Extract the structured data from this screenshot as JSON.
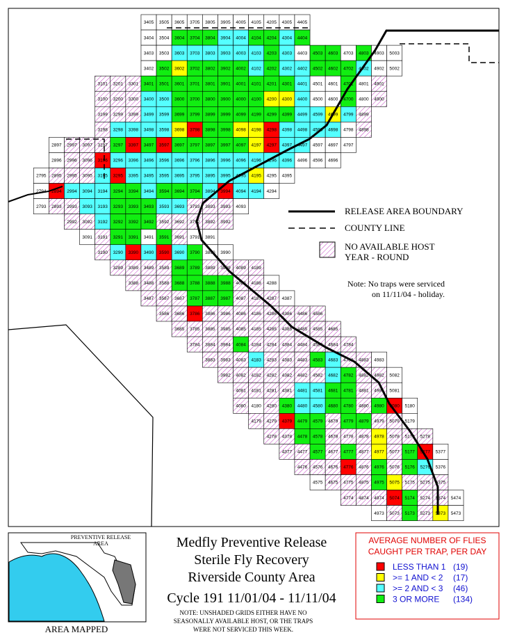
{
  "map": {
    "fill_colors": {
      "w": "#ffffff",
      "r": "#ff0000",
      "y": "#ffff00",
      "c": "#55ffff",
      "g": "#11ee11",
      "h": "hatch"
    },
    "rows": [
      {
        "cells": [
          "3405",
          "3505",
          "3605",
          "3705",
          "3805",
          "3905",
          "4005",
          "4105",
          "4205",
          "4305",
          "4405"
        ],
        "fill": "wwwwwwwwwww"
      },
      {
        "cells": [
          "3404",
          "3504",
          "3604",
          "3704",
          "3804",
          "3904",
          "4004",
          "4104",
          "4204",
          "4304",
          "4404"
        ],
        "fill": "wwgggccggcg"
      },
      {
        "cells": [
          "3403",
          "3503",
          "3603",
          "3703",
          "3803",
          "3903",
          "4003",
          "4103",
          "4203",
          "4303",
          "4403",
          "4503",
          "4603",
          "4703",
          "4803",
          "4903",
          "5003"
        ],
        "fill": "wwccccccgcwggwgww"
      },
      {
        "cells": [
          "3402",
          "3502",
          "3602",
          "3702",
          "3802",
          "3902",
          "4002",
          "4102",
          "4202",
          "4302",
          "4402",
          "4502",
          "4602",
          "4702",
          "4802",
          "4902",
          "5002"
        ],
        "fill": "wgyggggcgccgggcww"
      },
      {
        "cells": [
          "3101",
          "3201",
          "3301",
          "3401",
          "3501",
          "3601",
          "3701",
          "3801",
          "3901",
          "4001",
          "4101",
          "4201",
          "4301",
          "4401",
          "4501",
          "4601",
          "4701",
          "4801",
          "4901"
        ],
        "fill": "hhhggggggggggcwwgwh"
      },
      {
        "cells": [
          "3100",
          "3200",
          "3300",
          "3400",
          "3500",
          "3600",
          "3700",
          "3800",
          "3900",
          "4000",
          "4100",
          "4200",
          "4300",
          "4400",
          "4500",
          "4600",
          "4700",
          "4800",
          "4900"
        ],
        "fill": "hhhccggggggyycwwgwh"
      },
      {
        "cells": [
          "3199",
          "3299",
          "3399",
          "3499",
          "3599",
          "3699",
          "3799",
          "3899",
          "3999",
          "4099",
          "4199",
          "4299",
          "4399",
          "4499",
          "4599",
          "4699",
          "4799",
          "4899"
        ],
        "fill": "hhhccggggggggccych"
      },
      {
        "cells": [
          "3198",
          "3298",
          "3398",
          "3498",
          "3598",
          "3698",
          "3798",
          "3898",
          "3998",
          "4098",
          "4198",
          "4298",
          "4398",
          "4498",
          "4598",
          "4698",
          "4798",
          "4898"
        ],
        "fill": "hccccyrggyyrccccwh"
      },
      {
        "cells": [
          "2897",
          "2997",
          "3097",
          "3197",
          "3297",
          "3397",
          "3497",
          "3597",
          "3697",
          "3797",
          "3897",
          "3997",
          "4097",
          "4197",
          "4297",
          "4397",
          "4497",
          "4597",
          "4697",
          "4797"
        ],
        "fill": "whhhgrgrgggggyrccwww"
      },
      {
        "cells": [
          "2896",
          "2996",
          "3096",
          "3196",
          "3296",
          "3396",
          "3496",
          "3596",
          "3696",
          "3796",
          "3896",
          "3996",
          "4096",
          "4196",
          "4296",
          "4396",
          "4496",
          "4596",
          "4696"
        ],
        "fill": "whhrccccccccccccwww"
      },
      {
        "cells": [
          "2795",
          "2895",
          "2995",
          "3095",
          "3195",
          "3295",
          "3395",
          "3495",
          "3595",
          "3695",
          "3795",
          "3895",
          "3995",
          "4095",
          "4195",
          "4295",
          "4395"
        ],
        "fill": "whhhcrccccccccyww"
      },
      {
        "cells": [
          "2794",
          "2894",
          "2994",
          "3094",
          "3194",
          "3294",
          "3394",
          "3494",
          "3594",
          "3694",
          "3794",
          "3894",
          "3994",
          "4094",
          "4194",
          "4294"
        ],
        "fill": "wrcccggcgggcrccw"
      },
      {
        "cells": [
          "2793",
          "2893",
          "2993",
          "3093",
          "3193",
          "3293",
          "3393",
          "3493",
          "3593",
          "3693",
          "3793",
          "3893",
          "3993",
          "4093"
        ],
        "fill": "whhccgggcchhhw"
      },
      {
        "cells": [
          "2992",
          "3092",
          "3192",
          "3292",
          "3392",
          "3492",
          "3592",
          "3692",
          "3792",
          "3892",
          "3992"
        ],
        "fill": "hhcggghhhhh"
      },
      {
        "cells": [
          "3091",
          "3191",
          "3291",
          "3391",
          "3491",
          "3591",
          "3691",
          "3791",
          "3891"
        ],
        "fill": "whggwghww"
      },
      {
        "cells": [
          "3190",
          "3290",
          "3390",
          "3490",
          "3590",
          "3690",
          "3790",
          "3890",
          "3990"
        ],
        "fill": "hcrcrcgww"
      },
      {
        "cells": [
          "3289",
          "3389",
          "3489",
          "3589",
          "3689",
          "3789",
          "3889",
          "3989",
          "4089",
          "4189"
        ],
        "fill": "hhhhgghhhh"
      },
      {
        "cells": [
          "3388",
          "3488",
          "3588",
          "3688",
          "3788",
          "3888",
          "3988",
          "4088",
          "4188",
          "4288"
        ],
        "fill": "hhhgggghhw"
      },
      {
        "cells": [
          "3487",
          "3587",
          "3687",
          "3787",
          "3887",
          "3987",
          "4087",
          "4187",
          "4287",
          "4387"
        ],
        "fill": "hhhggghhhw"
      },
      {
        "cells": [
          "3586",
          "3686",
          "3786",
          "3886",
          "3986",
          "4086",
          "4186",
          "4286",
          "4386",
          "4486",
          "4586"
        ],
        "fill": "hhrhhhhhhhh"
      },
      {
        "cells": [
          "3685",
          "3785",
          "3885",
          "3985",
          "4085",
          "4185",
          "4285",
          "4385",
          "4485",
          "4585",
          "4685"
        ],
        "fill": "hhhhhhhhhhh"
      },
      {
        "cells": [
          "3784",
          "3884",
          "3984",
          "4084",
          "4184",
          "4284",
          "4384",
          "4484",
          "4584",
          "4684",
          "4784"
        ],
        "fill": "hhhghhhhhhh"
      },
      {
        "cells": [
          "3883",
          "3983",
          "4083",
          "4183",
          "4283",
          "4383",
          "4483",
          "4583",
          "4683",
          "4783",
          "4883",
          "4983"
        ],
        "fill": "hhhchhhgchhw"
      },
      {
        "cells": [
          "3982",
          "4082",
          "4182",
          "4282",
          "4382",
          "4482",
          "4582",
          "4682",
          "4782",
          "4882",
          "4982",
          "5082"
        ],
        "fill": "hhhhhhhcghhw"
      },
      {
        "cells": [
          "4081",
          "4181",
          "4281",
          "4381",
          "4481",
          "4581",
          "4681",
          "4781",
          "4881",
          "4981",
          "5081"
        ],
        "fill": "hhhhccgghhw"
      },
      {
        "cells": [
          "4080",
          "4180",
          "4280",
          "4380",
          "4480",
          "4580",
          "4680",
          "4780",
          "4880",
          "4980",
          "5080",
          "5180"
        ],
        "fill": "hwhgccgghgrw"
      },
      {
        "cells": [
          "4179",
          "4279",
          "4379",
          "4479",
          "4579",
          "4679",
          "4779",
          "4879",
          "4979",
          "5079",
          "5179"
        ],
        "fill": "hhrgghgghhw"
      },
      {
        "cells": [
          "4278",
          "4378",
          "4478",
          "4578",
          "4678",
          "4778",
          "4878",
          "4978",
          "5078",
          "5178",
          "5278"
        ],
        "fill": "hhgghhhyhhh"
      },
      {
        "cells": [
          "4377",
          "4477",
          "4577",
          "4677",
          "4777",
          "4877",
          "4977",
          "5077",
          "5177",
          "5277",
          "5377"
        ],
        "fill": "hhghghyhgrw"
      },
      {
        "cells": [
          "4476",
          "4576",
          "4676",
          "4776",
          "4876",
          "4976",
          "5076",
          "5176",
          "5276",
          "5376"
        ],
        "fill": "hhhrhghgcw"
      },
      {
        "cells": [
          "4575",
          "4675",
          "4775",
          "4875",
          "4975",
          "5075",
          "5175",
          "5275",
          "5375"
        ],
        "fill": "whhhgyhhh"
      },
      {
        "cells": [
          "4774",
          "4874",
          "4974",
          "5074",
          "5174",
          "5274",
          "5374",
          "5474"
        ],
        "fill": "hhhrghhw"
      },
      {
        "cells": [
          "4973",
          "5073",
          "5173",
          "5273",
          "5373",
          "5473"
        ],
        "fill": "whghyw"
      }
    ],
    "legend": {
      "boundary": "RELEASE AREA BOUNDARY",
      "county": "COUNTY LINE",
      "host_line1": "NO AVAILABLE HOST",
      "host_line2": "YEAR - ROUND"
    },
    "note": [
      "Note: No traps were serviced",
      "on 11/11/04 - holiday."
    ]
  },
  "inset": {
    "title_line1": "PREVENTIVE RELEASE",
    "title_line2": "AREA",
    "caption": "AREA MAPPED"
  },
  "title": {
    "lines": [
      "Medfly Preventive Release",
      "Sterile Fly Recovery",
      "Riverside County Area"
    ],
    "cycle": "Cycle 191    11/01/04 - 11/11/04",
    "note": [
      "NOTE: UNSHADED GRIDS EITHER HAVE NO",
      "SEASONALLY AVAILABLE HOST, OR THE TRAPS",
      "WERE NOT SERVICED THIS WEEK."
    ]
  },
  "color_legend": {
    "header": [
      "AVERAGE NUMBER OF FLIES",
      "CAUGHT PER TRAP, PER DAY"
    ],
    "items": [
      {
        "label": "LESS THAN 1",
        "count": "(19)",
        "color": "#ff0000"
      },
      {
        "label": ">= 1 AND < 2",
        "count": "(17)",
        "color": "#ffff00"
      },
      {
        "label": ">= 2 AND < 3",
        "count": "(46)",
        "color": "#55ffff"
      },
      {
        "label": "3 OR MORE",
        "count": "(134)",
        "color": "#11ee11"
      }
    ]
  }
}
